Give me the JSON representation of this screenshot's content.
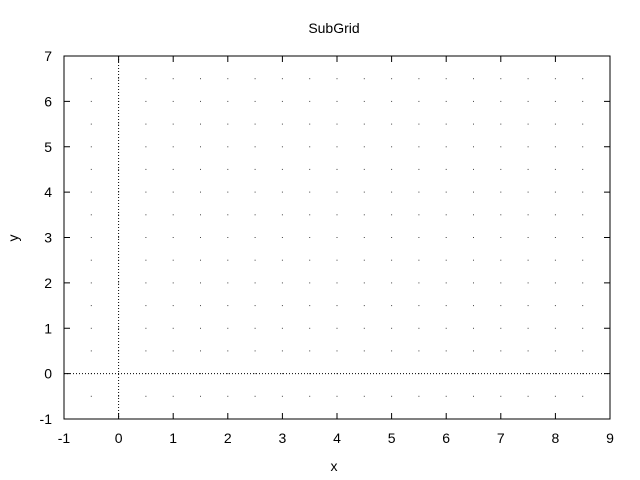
{
  "chart_data": {
    "type": "scatter",
    "title": "SubGrid",
    "xlabel": "x",
    "ylabel": "y",
    "xlim": [
      -1,
      9
    ],
    "ylim": [
      -1,
      7
    ],
    "x_ticks": [
      -1,
      0,
      1,
      2,
      3,
      4,
      5,
      6,
      7,
      8,
      9
    ],
    "y_ticks": [
      -1,
      0,
      1,
      2,
      3,
      4,
      5,
      6,
      7
    ],
    "x_tick_labels": [
      "-1",
      "0",
      "1",
      "2",
      "3",
      "4",
      "5",
      "6",
      "7",
      "8",
      "9"
    ],
    "y_tick_labels": [
      "-1",
      "0",
      "1",
      "2",
      "3",
      "4",
      "5",
      "6",
      "7"
    ],
    "grid": true,
    "minor_grid_step": 0.5,
    "zero_axes": true,
    "series": []
  }
}
